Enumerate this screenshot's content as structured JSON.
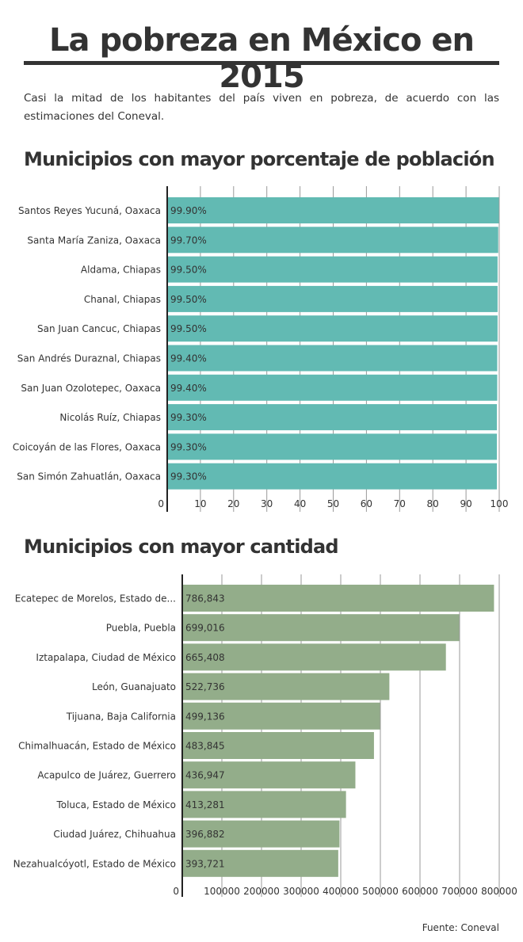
{
  "header": {
    "title": "La pobreza en México en 2015",
    "intro": "Casi la mitad de los habitantes del país viven en pobreza, de acuerdo con las estimaciones del Coneval."
  },
  "footer": {
    "source": "Fuente: Coneval"
  },
  "chart_data": [
    {
      "type": "bar",
      "orientation": "horizontal",
      "title": "Municipios con mayor porcentaje de población",
      "categories": [
        "Santos Reyes Yucuná, Oaxaca",
        "Santa María Zaniza, Oaxaca",
        "Aldama, Chiapas",
        "Chanal, Chiapas",
        "San Juan Cancuc, Chiapas",
        "San Andrés Duraznal, Chiapas",
        "San Juan Ozolotepec, Oaxaca",
        "Nicolás Ruíz, Chiapas",
        "Coicoyán de las Flores, Oaxaca",
        "San Simón Zahuatlán, Oaxaca"
      ],
      "values": [
        99.9,
        99.7,
        99.5,
        99.5,
        99.5,
        99.4,
        99.4,
        99.3,
        99.3,
        99.3
      ],
      "value_labels": [
        "99.90%",
        "99.70%",
        "99.50%",
        "99.50%",
        "99.50%",
        "99.40%",
        "99.40%",
        "99.30%",
        "99.30%",
        "99.30%"
      ],
      "xlim": [
        0,
        100
      ],
      "ticks": [
        0,
        10,
        20,
        30,
        40,
        50,
        60,
        70,
        80,
        90,
        100
      ],
      "tick_labels": [
        "0",
        "10",
        "20",
        "30",
        "40",
        "50",
        "60",
        "70",
        "80",
        "90",
        "100"
      ],
      "grid": true,
      "bar_color": "#62bab3"
    },
    {
      "type": "bar",
      "orientation": "horizontal",
      "title": "Municipios con mayor cantidad",
      "categories": [
        "Ecatepec de Morelos, Estado de...",
        "Puebla, Puebla",
        "Iztapalapa, Ciudad de México",
        "León, Guanajuato",
        "Tijuana, Baja California",
        "Chimalhuacán, Estado de México",
        "Acapulco de Juárez, Guerrero",
        "Toluca, Estado de México",
        "Ciudad Juárez, Chihuahua",
        "Nezahualcóyotl, Estado de México"
      ],
      "values": [
        786843,
        699016,
        665408,
        522736,
        499136,
        483845,
        436947,
        413281,
        396882,
        393721
      ],
      "value_labels": [
        "786,843",
        "699,016",
        "665,408",
        "522,736",
        "499,136",
        "483,845",
        "436,947",
        "413,281",
        "396,882",
        "393,721"
      ],
      "xlim": [
        0,
        800000
      ],
      "ticks": [
        0,
        100000,
        200000,
        300000,
        400000,
        500000,
        600000,
        700000,
        800000
      ],
      "tick_labels": [
        "0",
        "100000",
        "200000",
        "300000",
        "400000",
        "500000",
        "600000",
        "700000",
        "800000"
      ],
      "grid": true,
      "bar_color": "#93ad8a"
    }
  ]
}
